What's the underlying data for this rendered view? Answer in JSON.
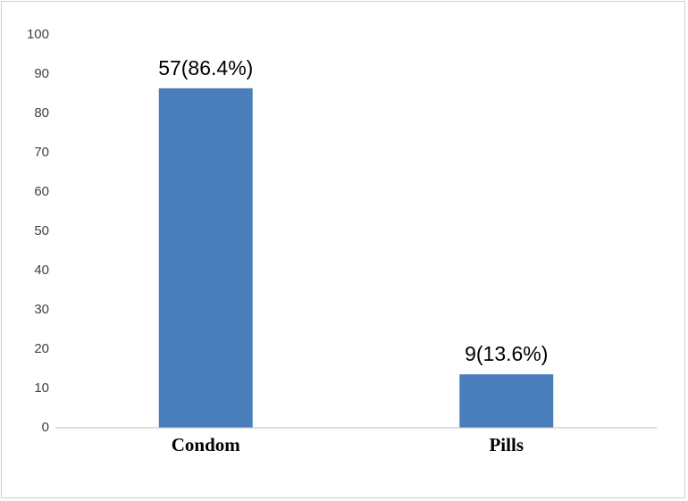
{
  "chart_data": {
    "type": "bar",
    "categories": [
      "Condom",
      "Pills"
    ],
    "values": [
      86.4,
      13.6
    ],
    "value_labels": [
      "57(86.4%)",
      "9(13.6%)"
    ],
    "color": "#4a7ebb",
    "ylim": [
      0,
      100
    ],
    "yticks": [
      0,
      10,
      20,
      30,
      40,
      50,
      60,
      70,
      80,
      90,
      100
    ],
    "grid": false
  }
}
